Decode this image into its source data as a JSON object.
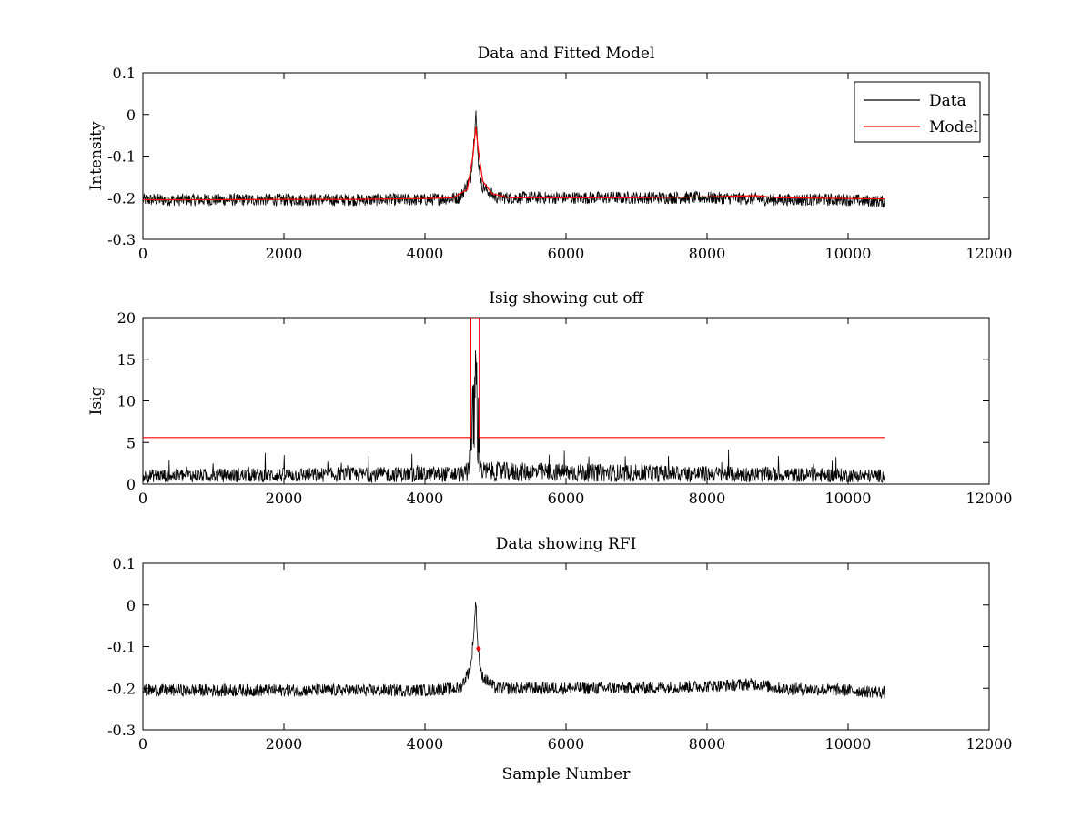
{
  "figure": {
    "background": "#ffffff"
  },
  "chart_data": [
    {
      "type": "line",
      "title": "Data and Fitted Model",
      "xlabel": "",
      "ylabel": "Intensity",
      "xlim": [
        0,
        12000
      ],
      "ylim": [
        -0.3,
        0.1
      ],
      "xticks": [
        0,
        2000,
        4000,
        6000,
        8000,
        10000,
        12000
      ],
      "yticks": [
        -0.3,
        -0.2,
        -0.1,
        0,
        0.1
      ],
      "ytick_labels": [
        "-0.3",
        "-0.2",
        "-0.1",
        "0",
        "0.1"
      ],
      "legend": {
        "placement": "top-right",
        "entries": [
          "Data",
          "Model"
        ]
      },
      "series": [
        {
          "name": "Data",
          "color": "#000000",
          "description_points": {
            "x": [
              0,
              1000,
              2000,
              3000,
              4000,
              4500,
              4650,
              4700,
              4720,
              4750,
              4800,
              5000,
              6000,
              7000,
              8000,
              9000,
              10000,
              10520
            ],
            "y": [
              -0.205,
              -0.205,
              -0.205,
              -0.205,
              -0.205,
              -0.2,
              -0.15,
              -0.05,
              0.015,
              -0.1,
              -0.17,
              -0.2,
              -0.2,
              -0.2,
              -0.2,
              -0.205,
              -0.205,
              -0.21
            ]
          },
          "noise_amplitude": 0.015
        },
        {
          "name": "Model",
          "color": "#ff0000",
          "x": [
            0,
            1000,
            2000,
            3000,
            4000,
            4400,
            4600,
            4680,
            4720,
            4760,
            4820,
            4950,
            5200,
            6000,
            7000,
            8000,
            8700,
            9000,
            10000,
            10520
          ],
          "y": [
            -0.205,
            -0.205,
            -0.204,
            -0.204,
            -0.202,
            -0.2,
            -0.18,
            -0.1,
            -0.03,
            -0.09,
            -0.16,
            -0.19,
            -0.2,
            -0.2,
            -0.2,
            -0.198,
            -0.195,
            -0.2,
            -0.202,
            -0.203
          ]
        }
      ]
    },
    {
      "type": "line",
      "title": "Isig showing cut off",
      "xlabel": "",
      "ylabel": "Isig",
      "xlim": [
        0,
        12000
      ],
      "ylim": [
        0,
        20
      ],
      "xticks": [
        0,
        2000,
        4000,
        6000,
        8000,
        10000,
        12000
      ],
      "yticks": [
        0,
        5,
        10,
        15,
        20
      ],
      "ytick_labels": [
        "0",
        "5",
        "10",
        "15",
        "20"
      ],
      "series": [
        {
          "name": "",
          "color": "#000000",
          "description_points": {
            "x": [
              0,
              4600,
              4680,
              4720,
              4760,
              4800,
              10520
            ],
            "y": [
              1,
              1.2,
              7,
              12,
              6,
              1.5,
              1
            ]
          },
          "noise_amplitude": 1.2
        },
        {
          "name": "",
          "color": "#ff0000",
          "x": [
            0,
            4650,
            4650,
            4770,
            4770,
            10520
          ],
          "y": [
            5.6,
            5.6,
            20,
            20,
            5.6,
            5.6
          ]
        }
      ]
    },
    {
      "type": "line",
      "title": "Data showing RFI",
      "xlabel": "Sample Number",
      "ylabel": "",
      "xlim": [
        0,
        12000
      ],
      "ylim": [
        -0.3,
        0.1
      ],
      "xticks": [
        0,
        2000,
        4000,
        6000,
        8000,
        10000,
        12000
      ],
      "yticks": [
        -0.3,
        -0.2,
        -0.1,
        0,
        0.1
      ],
      "ytick_labels": [
        "-0.3",
        "-0.2",
        "-0.1",
        "0",
        "0.1"
      ],
      "series": [
        {
          "name": "",
          "color": "#000000",
          "description_points": {
            "x": [
              0,
              1000,
              2000,
              3000,
              4000,
              4500,
              4650,
              4700,
              4720,
              4750,
              4800,
              5000,
              6000,
              7000,
              8000,
              8700,
              9000,
              10000,
              10520
            ],
            "y": [
              -0.205,
              -0.205,
              -0.205,
              -0.205,
              -0.205,
              -0.2,
              -0.15,
              -0.05,
              0.015,
              -0.1,
              -0.17,
              -0.2,
              -0.2,
              -0.2,
              -0.195,
              -0.19,
              -0.2,
              -0.205,
              -0.21
            ]
          },
          "noise_amplitude": 0.015
        },
        {
          "name": "",
          "color": "#ff0000",
          "marker_only": true,
          "x": [
            4760
          ],
          "y": [
            -0.105
          ]
        }
      ]
    }
  ]
}
